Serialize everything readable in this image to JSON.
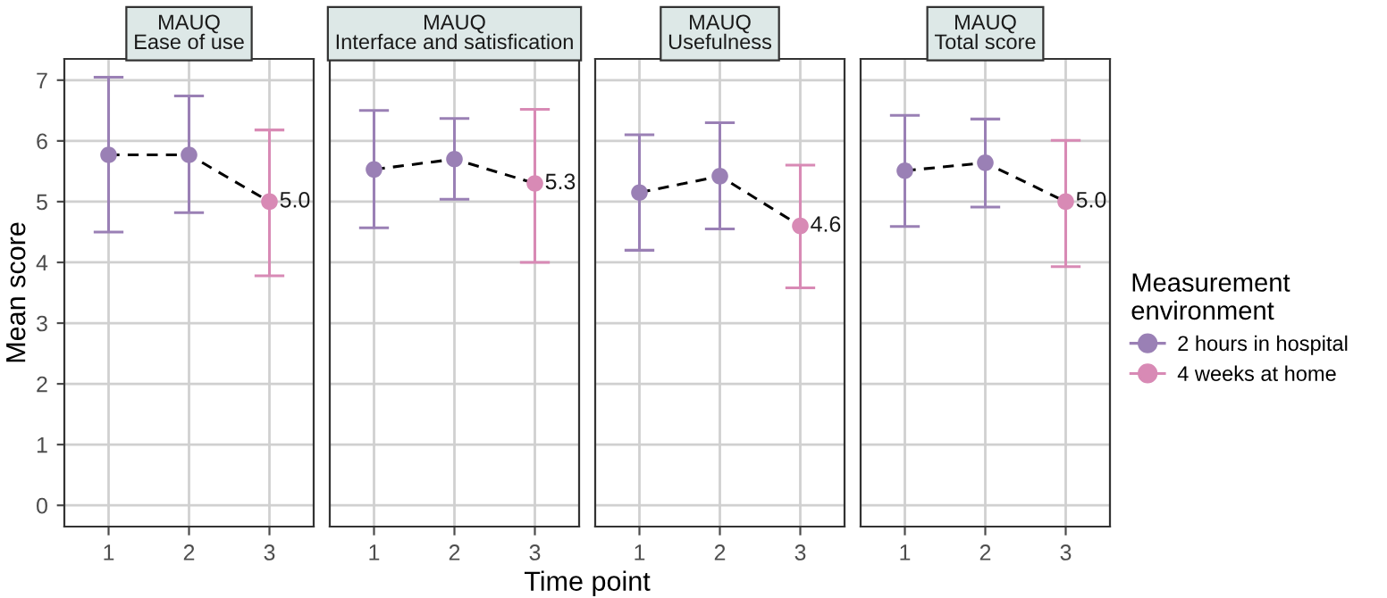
{
  "chart_data": [
    {
      "type": "scatter",
      "title": "MAUQ\nEase of use",
      "ylabel": "Mean score",
      "categories": [
        "1",
        "2",
        "3"
      ],
      "ylim": [
        -0.35,
        7.35
      ],
      "yticks": [
        0,
        1,
        2,
        3,
        4,
        5,
        6,
        7
      ],
      "grid": true,
      "marker": "circle",
      "series": [
        {
          "color": "#9a80b5",
          "values": [
            5.77,
            5.77,
            null
          ],
          "errors": [
            [
              4.5,
              7.05
            ],
            [
              4.82,
              6.74
            ],
            null
          ]
        },
        {
          "color": "#d88ab5",
          "values": [
            null,
            null,
            5.0
          ],
          "errors": [
            null,
            null,
            [
              3.78,
              6.18
            ]
          ],
          "value_labels": [
            null,
            null,
            "5.0"
          ]
        },
        {
          "type": "line",
          "marker": "none",
          "line_style": "dashed",
          "color": "#000000",
          "values": [
            5.77,
            5.77,
            5.0
          ]
        }
      ]
    },
    {
      "type": "scatter",
      "title": "MAUQ\nInterface and satisfication",
      "categories": [
        "1",
        "2",
        "3"
      ],
      "ylim": [
        -0.35,
        7.35
      ],
      "yticks": [
        0,
        1,
        2,
        3,
        4,
        5,
        6,
        7
      ],
      "grid": true,
      "marker": "circle",
      "tick_labels": "x",
      "series": [
        {
          "color": "#9a80b5",
          "values": [
            5.53,
            5.7,
            null
          ],
          "errors": [
            [
              4.57,
              6.5
            ],
            [
              5.04,
              6.37
            ],
            null
          ]
        },
        {
          "color": "#d88ab5",
          "values": [
            null,
            null,
            5.3
          ],
          "errors": [
            null,
            null,
            [
              4.0,
              6.52
            ]
          ],
          "value_labels": [
            null,
            null,
            "5.3"
          ]
        },
        {
          "type": "line",
          "marker": "none",
          "line_style": "dashed",
          "color": "#000000",
          "values": [
            5.53,
            5.7,
            5.3
          ]
        }
      ]
    },
    {
      "type": "scatter",
      "title": "MAUQ\nUsefulness",
      "xlabel": "Time point",
      "categories": [
        "1",
        "2",
        "3"
      ],
      "ylim": [
        -0.35,
        7.35
      ],
      "yticks": [
        0,
        1,
        2,
        3,
        4,
        5,
        6,
        7
      ],
      "grid": true,
      "marker": "circle",
      "tick_labels": "x",
      "series": [
        {
          "color": "#9a80b5",
          "values": [
            5.15,
            5.42,
            null
          ],
          "errors": [
            [
              4.2,
              6.1
            ],
            [
              4.55,
              6.3
            ],
            null
          ]
        },
        {
          "color": "#d88ab5",
          "values": [
            null,
            null,
            4.6
          ],
          "errors": [
            null,
            null,
            [
              3.58,
              5.6
            ]
          ],
          "value_labels": [
            null,
            null,
            "4.6"
          ]
        },
        {
          "type": "line",
          "marker": "none",
          "line_style": "dashed",
          "color": "#000000",
          "values": [
            5.15,
            5.42,
            4.6
          ]
        }
      ]
    },
    {
      "type": "scatter",
      "title": "MAUQ\nTotal score",
      "categories": [
        "1",
        "2",
        "3"
      ],
      "ylim": [
        -0.35,
        7.35
      ],
      "yticks": [
        0,
        1,
        2,
        3,
        4,
        5,
        6,
        7
      ],
      "grid": true,
      "marker": "circle",
      "tick_labels": "x",
      "legend": "right",
      "legend_title": "Measurement\nenvironment",
      "series": [
        {
          "name": "2 hours in hospital",
          "color": "#9a80b5",
          "values": [
            5.51,
            5.64,
            null
          ],
          "errors": [
            [
              4.59,
              6.42
            ],
            [
              4.91,
              6.36
            ],
            null
          ]
        },
        {
          "name": "4 weeks at home",
          "color": "#d88ab5",
          "values": [
            null,
            null,
            5.0
          ],
          "errors": [
            null,
            null,
            [
              3.93,
              6.01
            ]
          ],
          "value_labels": [
            null,
            null,
            "5.0"
          ]
        },
        {
          "type": "line",
          "marker": "none",
          "line_style": "dashed",
          "color": "#000000",
          "values": [
            5.51,
            5.64,
            5.0
          ]
        }
      ]
    }
  ]
}
